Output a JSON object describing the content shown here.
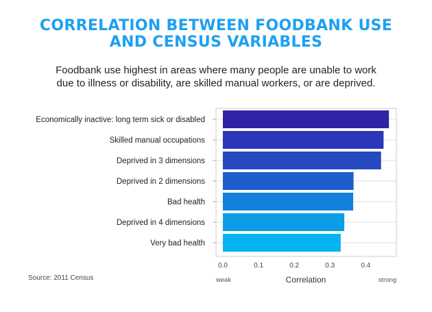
{
  "title_lines": [
    "CORRELATION BETWEEN FOODBANK USE",
    "AND CENSUS VARIABLES"
  ],
  "subtitle_lines": [
    "Foodbank use highest in areas where many people are unable to work",
    "due to illness or disability, are skilled manual workers, or are deprived."
  ],
  "source": "Source: 2011 Census",
  "chart_data": {
    "type": "bar",
    "orientation": "horizontal",
    "categories": [
      "Economically inactive: long term sick or disabled",
      "Skilled manual occupations",
      "Deprived in 3 dimensions",
      "Deprived in 2 dimensions",
      "Bad health",
      "Deprived in 4 dimensions",
      "Very bad health"
    ],
    "values": [
      0.465,
      0.45,
      0.443,
      0.366,
      0.365,
      0.34,
      0.33
    ],
    "colors": [
      "#3023a6",
      "#2b36b8",
      "#2649bf",
      "#1c5fcc",
      "#1380dc",
      "#0c9de8",
      "#06b3f2"
    ],
    "xlabel": "Correlation",
    "ylabel": "",
    "xlim": [
      0,
      0.48
    ],
    "xticks": [
      0.0,
      0.1,
      0.2,
      0.3,
      0.4
    ],
    "xtick_labels": [
      "0.0",
      "0.1",
      "0.2",
      "0.3",
      "0.4"
    ],
    "x_end_labels": {
      "left": "weak",
      "right": "strong"
    },
    "grid": true,
    "frame_color": "#cccccc"
  }
}
